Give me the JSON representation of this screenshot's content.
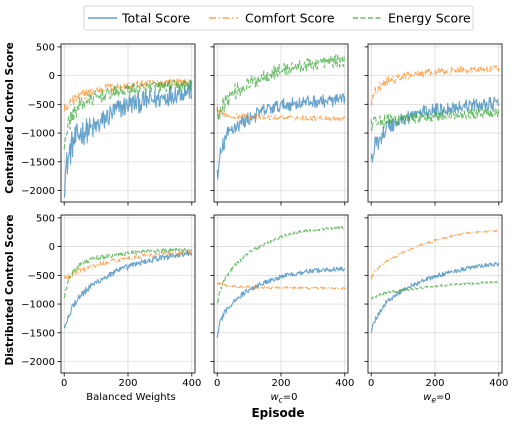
{
  "legend": [
    {
      "name": "Total Score",
      "color": "#1f77b4",
      "dash": "solid"
    },
    {
      "name": "Comfort Score",
      "color": "#ff7f0e",
      "dash": "dashdot"
    },
    {
      "name": "Energy Score",
      "color": "#2ca02c",
      "dash": "dashed"
    }
  ],
  "row_labels": [
    "Centralized Control Score",
    "Distributed Control Score"
  ],
  "col_labels": [
    "Balanced Weights",
    "w_c=0",
    "w_e=0"
  ],
  "x_axis_title": "Episode",
  "chart_data": {
    "type": "line",
    "layout": "2x3 grid, shared axes",
    "xlim": [
      -10,
      410
    ],
    "ylim": [
      -2200,
      550
    ],
    "x_ticks": [
      0,
      200,
      400
    ],
    "y_ticks": [
      500,
      0,
      -500,
      -1000,
      -1500,
      -2000
    ],
    "grid": true,
    "legend_position": "top-center",
    "panels": [
      {
        "row": "Centralized Control Score",
        "col": "Balanced Weights",
        "series": [
          {
            "name": "Total Score",
            "x": [
              0,
              10,
              25,
              50,
              100,
              150,
              200,
              250,
              300,
              350,
              400
            ],
            "y": [
              -1850,
              -1500,
              -1200,
              -1000,
              -900,
              -650,
              -500,
              -450,
              -400,
              -300,
              -250
            ],
            "noise": 180
          },
          {
            "name": "Comfort Score",
            "x": [
              0,
              10,
              25,
              50,
              100,
              150,
              200,
              250,
              300,
              350,
              400
            ],
            "y": [
              -600,
              -550,
              -450,
              -350,
              -250,
              -200,
              -180,
              -150,
              -130,
              -120,
              -120
            ],
            "noise": 70
          },
          {
            "name": "Energy Score",
            "x": [
              0,
              10,
              25,
              50,
              100,
              150,
              200,
              250,
              300,
              350,
              400
            ],
            "y": [
              -1200,
              -900,
              -700,
              -500,
              -380,
              -300,
              -250,
              -220,
              -190,
              -170,
              -150
            ],
            "noise": 100
          }
        ]
      },
      {
        "row": "Centralized Control Score",
        "col": "w_c=0",
        "series": [
          {
            "name": "Total Score",
            "x": [
              0,
              10,
              25,
              50,
              100,
              150,
              200,
              250,
              300,
              350,
              400
            ],
            "y": [
              -1800,
              -1400,
              -1100,
              -900,
              -750,
              -600,
              -520,
              -480,
              -450,
              -440,
              -430
            ],
            "noise": 110
          },
          {
            "name": "Comfort Score",
            "x": [
              0,
              10,
              25,
              50,
              100,
              150,
              200,
              250,
              300,
              350,
              400
            ],
            "y": [
              -620,
              -650,
              -680,
              -700,
              -720,
              -730,
              -730,
              -735,
              -740,
              -745,
              -750
            ],
            "noise": 40
          },
          {
            "name": "Energy Score",
            "x": [
              0,
              10,
              25,
              50,
              100,
              150,
              200,
              250,
              300,
              350,
              400
            ],
            "y": [
              -700,
              -550,
              -450,
              -300,
              -150,
              0,
              100,
              150,
              200,
              250,
              260
            ],
            "noise": 110
          }
        ]
      },
      {
        "row": "Centralized Control Score",
        "col": "w_e=0",
        "series": [
          {
            "name": "Total Score",
            "x": [
              0,
              10,
              25,
              50,
              100,
              150,
              200,
              250,
              300,
              350,
              400
            ],
            "y": [
              -1500,
              -1250,
              -1100,
              -900,
              -750,
              -650,
              -600,
              -560,
              -520,
              -500,
              -480
            ],
            "noise": 110
          },
          {
            "name": "Comfort Score",
            "x": [
              0,
              10,
              25,
              50,
              100,
              150,
              200,
              250,
              300,
              350,
              400
            ],
            "y": [
              -500,
              -300,
              -200,
              -100,
              -20,
              30,
              60,
              80,
              100,
              110,
              120
            ],
            "noise": 60
          },
          {
            "name": "Energy Score",
            "x": [
              0,
              10,
              25,
              50,
              100,
              150,
              200,
              250,
              300,
              350,
              400
            ],
            "y": [
              -900,
              -850,
              -800,
              -780,
              -760,
              -720,
              -700,
              -680,
              -660,
              -650,
              -640
            ],
            "noise": 90
          }
        ]
      },
      {
        "row": "Distributed Control Score",
        "col": "Balanced Weights",
        "series": [
          {
            "name": "Total Score",
            "x": [
              0,
              10,
              25,
              50,
              100,
              150,
              200,
              250,
              300,
              350,
              400
            ],
            "y": [
              -1400,
              -1250,
              -1050,
              -850,
              -620,
              -470,
              -350,
              -260,
              -200,
              -150,
              -120
            ],
            "noise": 50
          },
          {
            "name": "Comfort Score",
            "x": [
              0,
              10,
              25,
              50,
              100,
              150,
              200,
              250,
              300,
              350,
              400
            ],
            "y": [
              -580,
              -530,
              -480,
              -410,
              -320,
              -250,
              -200,
              -160,
              -130,
              -110,
              -100
            ],
            "noise": 35
          },
          {
            "name": "Energy Score",
            "x": [
              0,
              10,
              25,
              50,
              100,
              150,
              200,
              250,
              300,
              350,
              400
            ],
            "y": [
              -850,
              -650,
              -450,
              -300,
              -200,
              -150,
              -110,
              -90,
              -75,
              -65,
              -60
            ],
            "noise": 35
          }
        ]
      },
      {
        "row": "Distributed Control Score",
        "col": "w_c=0",
        "series": [
          {
            "name": "Total Score",
            "x": [
              0,
              10,
              25,
              50,
              100,
              150,
              200,
              250,
              300,
              350,
              400
            ],
            "y": [
              -1550,
              -1300,
              -1150,
              -950,
              -750,
              -620,
              -520,
              -460,
              -420,
              -400,
              -390
            ],
            "noise": 40
          },
          {
            "name": "Comfort Score",
            "x": [
              0,
              10,
              25,
              50,
              100,
              150,
              200,
              250,
              300,
              350,
              400
            ],
            "y": [
              -620,
              -650,
              -670,
              -690,
              -705,
              -710,
              -715,
              -718,
              -720,
              -722,
              -725
            ],
            "noise": 18
          },
          {
            "name": "Energy Score",
            "x": [
              0,
              10,
              25,
              50,
              100,
              150,
              200,
              250,
              300,
              350,
              400
            ],
            "y": [
              -1000,
              -750,
              -550,
              -350,
              -100,
              50,
              170,
              250,
              290,
              315,
              330
            ],
            "noise": 25
          }
        ]
      },
      {
        "row": "Distributed Control Score",
        "col": "w_e=0",
        "series": [
          {
            "name": "Total Score",
            "x": [
              0,
              10,
              25,
              50,
              100,
              150,
              200,
              250,
              300,
              350,
              400
            ],
            "y": [
              -1500,
              -1300,
              -1150,
              -950,
              -750,
              -620,
              -520,
              -440,
              -380,
              -330,
              -300
            ],
            "noise": 35
          },
          {
            "name": "Comfort Score",
            "x": [
              0,
              10,
              25,
              50,
              100,
              150,
              200,
              250,
              300,
              350,
              400
            ],
            "y": [
              -550,
              -450,
              -350,
              -250,
              -100,
              20,
              110,
              180,
              230,
              260,
              280
            ],
            "noise": 18
          },
          {
            "name": "Energy Score",
            "x": [
              0,
              10,
              25,
              50,
              100,
              150,
              200,
              250,
              300,
              350,
              400
            ],
            "y": [
              -900,
              -870,
              -840,
              -800,
              -760,
              -720,
              -690,
              -665,
              -645,
              -630,
              -620
            ],
            "noise": 20
          }
        ]
      }
    ]
  }
}
